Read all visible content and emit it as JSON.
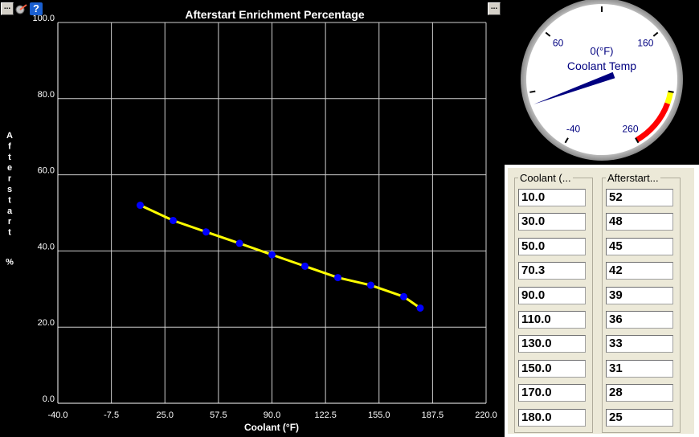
{
  "toolbar": {
    "menu_label": "...",
    "help_label": "?",
    "right_menu_label": "..."
  },
  "chart_data": {
    "type": "line",
    "title": "Afterstart Enrichment Percentage",
    "xlabel": "Coolant (°F)",
    "ylabel_chars": [
      "A",
      "f",
      "t",
      "e",
      "r",
      "s",
      "t",
      "a",
      "r",
      "t",
      "",
      "%"
    ],
    "xlim": [
      -40,
      220
    ],
    "ylim": [
      0,
      100
    ],
    "xticks": [
      "-40.0",
      "-7.5",
      "25.0",
      "57.5",
      "90.0",
      "122.5",
      "155.0",
      "187.5",
      "220.0"
    ],
    "yticks": [
      "0.0",
      "20.0",
      "40.0",
      "60.0",
      "80.0",
      "100.0"
    ],
    "x": [
      10.0,
      30.0,
      50.0,
      70.3,
      90.0,
      110.0,
      130.0,
      150.0,
      170.0,
      180.0
    ],
    "series": [
      {
        "values": [
          52,
          48,
          45,
          42,
          39,
          36,
          33,
          31,
          28,
          25
        ]
      }
    ],
    "line_color": "#ffff00",
    "marker_color": "#0000ff",
    "grid": true
  },
  "gauge": {
    "title": "Coolant Temp",
    "value_text": "0(°F)",
    "labels": [
      "-40",
      "60",
      "160",
      "260"
    ],
    "needle_value": 0,
    "warning_color": "#ffff00",
    "danger_color": "#ff0000"
  },
  "table": {
    "col1_header": "Coolant (...",
    "col2_header": "Afterstart...",
    "coolant": [
      "10.0",
      "30.0",
      "50.0",
      "70.3",
      "90.0",
      "110.0",
      "130.0",
      "150.0",
      "170.0",
      "180.0"
    ],
    "afterstart": [
      "52",
      "48",
      "45",
      "42",
      "39",
      "36",
      "33",
      "31",
      "28",
      "25"
    ]
  }
}
